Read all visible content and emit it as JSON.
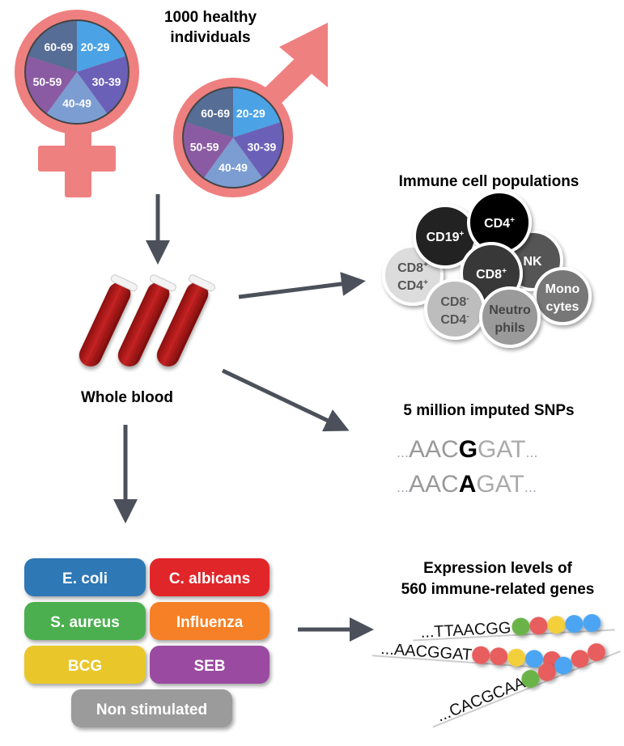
{
  "cohort": {
    "title_line1": "1000 healthy",
    "title_line2": "individuals",
    "age_groups": [
      "20-29",
      "30-39",
      "40-49",
      "50-59",
      "60-69"
    ],
    "age_colors": [
      "#4ba3e6",
      "#6b60b8",
      "#7b9dd2",
      "#8a5ba2",
      "#566d95"
    ],
    "symbol_color": "#ef8080"
  },
  "blood": {
    "label": "Whole blood"
  },
  "immune": {
    "title": "Immune cell populations",
    "cells": [
      {
        "line1": "CD8",
        "sup1": "+",
        "line2": "CD4",
        "sup2": "+",
        "fill": "#dcdcdc",
        "text": "#555555"
      },
      {
        "line1": "CD19",
        "sup1": "+",
        "line2": "",
        "sup2": "",
        "fill": "#222222",
        "text": "#ffffff"
      },
      {
        "line1": "NK",
        "sup1": "",
        "line2": "",
        "sup2": "",
        "fill": "#555555",
        "text": "#ffffff"
      },
      {
        "line1": "CD4",
        "sup1": "+",
        "line2": "",
        "sup2": "",
        "fill": "#000000",
        "text": "#ffffff"
      },
      {
        "line1": "CD8",
        "sup1": "+",
        "line2": "",
        "sup2": "",
        "fill": "#383838",
        "text": "#ffffff"
      },
      {
        "line1": "CD8",
        "sup1": "-",
        "line2": "CD4",
        "sup2": "-",
        "fill": "#bdbdbd",
        "text": "#555555"
      },
      {
        "line1": "Mono",
        "sup1": "",
        "line2": "cytes",
        "sup2": "",
        "fill": "#777777",
        "text": "#ffffff"
      },
      {
        "line1": "Neutro",
        "sup1": "",
        "line2": "phils",
        "sup2": "",
        "fill": "#9a9a9a",
        "text": "#444444"
      }
    ]
  },
  "snps": {
    "title": "5 million imputed SNPs",
    "seq1": {
      "prefix": "...",
      "left": "AAC",
      "allele": "G",
      "right": "GAT",
      "suffix": "..."
    },
    "seq2": {
      "prefix": "...",
      "left": "AAC",
      "allele": "A",
      "right": "GAT",
      "suffix": "..."
    }
  },
  "stimuli": [
    {
      "label": "E. coli",
      "color": "#2f78b6"
    },
    {
      "label": "C. albicans",
      "color": "#e1282a"
    },
    {
      "label": "S. aureus",
      "color": "#4caf50"
    },
    {
      "label": "Influenza",
      "color": "#f68026"
    },
    {
      "label": "BCG",
      "color": "#e9c72b"
    },
    {
      "label": "SEB",
      "color": "#9a4ba1"
    },
    {
      "label": "Non stimulated",
      "color": "#9b9b9b"
    }
  ],
  "expression": {
    "title_line1": "Expression levels of",
    "title_line2": "560 immune-related genes",
    "strands": [
      {
        "seq": "...TTAACGG",
        "beads": [
          "green",
          "red",
          "yellow",
          "blue",
          "blue"
        ]
      },
      {
        "seq": "...AACGGAT",
        "beads": [
          "red",
          "red",
          "yellow",
          "blue",
          "red"
        ]
      },
      {
        "seq": "...CACGCAA",
        "beads": [
          "green",
          "red",
          "blue",
          "red",
          "red"
        ]
      }
    ],
    "bead_colors": {
      "green": "#6bb34a",
      "red": "#e85d5d",
      "yellow": "#f3cf3b",
      "blue": "#4ba5f2"
    }
  },
  "arrow_color": "#4b505a"
}
